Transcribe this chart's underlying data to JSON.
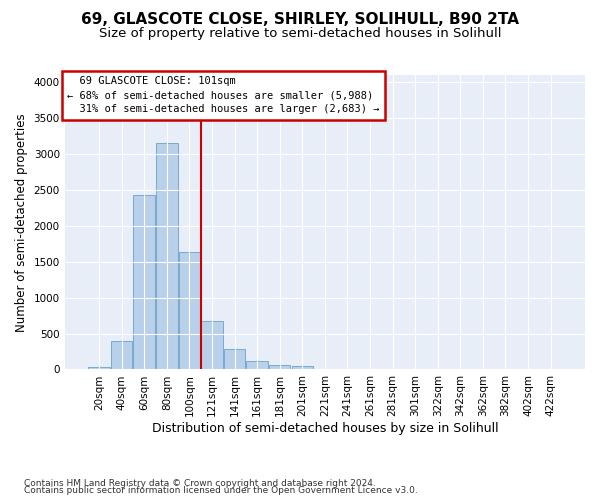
{
  "title": "69, GLASCOTE CLOSE, SHIRLEY, SOLIHULL, B90 2TA",
  "subtitle": "Size of property relative to semi-detached houses in Solihull",
  "xlabel": "Distribution of semi-detached houses by size in Solihull",
  "ylabel": "Number of semi-detached properties",
  "footnote1": "Contains HM Land Registry data © Crown copyright and database right 2024.",
  "footnote2": "Contains public sector information licensed under the Open Government Licence v3.0.",
  "bar_labels": [
    "20sqm",
    "40sqm",
    "60sqm",
    "80sqm",
    "100sqm",
    "121sqm",
    "141sqm",
    "161sqm",
    "181sqm",
    "201sqm",
    "221sqm",
    "241sqm",
    "261sqm",
    "281sqm",
    "301sqm",
    "322sqm",
    "342sqm",
    "362sqm",
    "382sqm",
    "402sqm",
    "422sqm"
  ],
  "bar_values": [
    30,
    400,
    2430,
    3150,
    1640,
    670,
    290,
    115,
    60,
    50,
    0,
    0,
    0,
    0,
    0,
    0,
    0,
    0,
    0,
    0,
    0
  ],
  "bar_color": "#b8d0ea",
  "bar_edge_color": "#6aa0c8",
  "vline_color": "#cc0000",
  "vline_x": 4.5,
  "annotation_text_line1": "  69 GLASCOTE CLOSE: 101sqm",
  "annotation_text_line2": "← 68% of semi-detached houses are smaller (5,988)",
  "annotation_text_line3": "  31% of semi-detached houses are larger (2,683) →",
  "annotation_box_color": "#ffffff",
  "annotation_border_color": "#cc0000",
  "ylim": [
    0,
    4100
  ],
  "yticks": [
    0,
    500,
    1000,
    1500,
    2000,
    2500,
    3000,
    3500,
    4000
  ],
  "bg_color": "#e8eef8",
  "grid_color": "#ffffff",
  "title_fontsize": 11,
  "subtitle_fontsize": 9.5,
  "xlabel_fontsize": 9,
  "ylabel_fontsize": 8.5,
  "tick_fontsize": 7.5,
  "footnote_fontsize": 6.5
}
